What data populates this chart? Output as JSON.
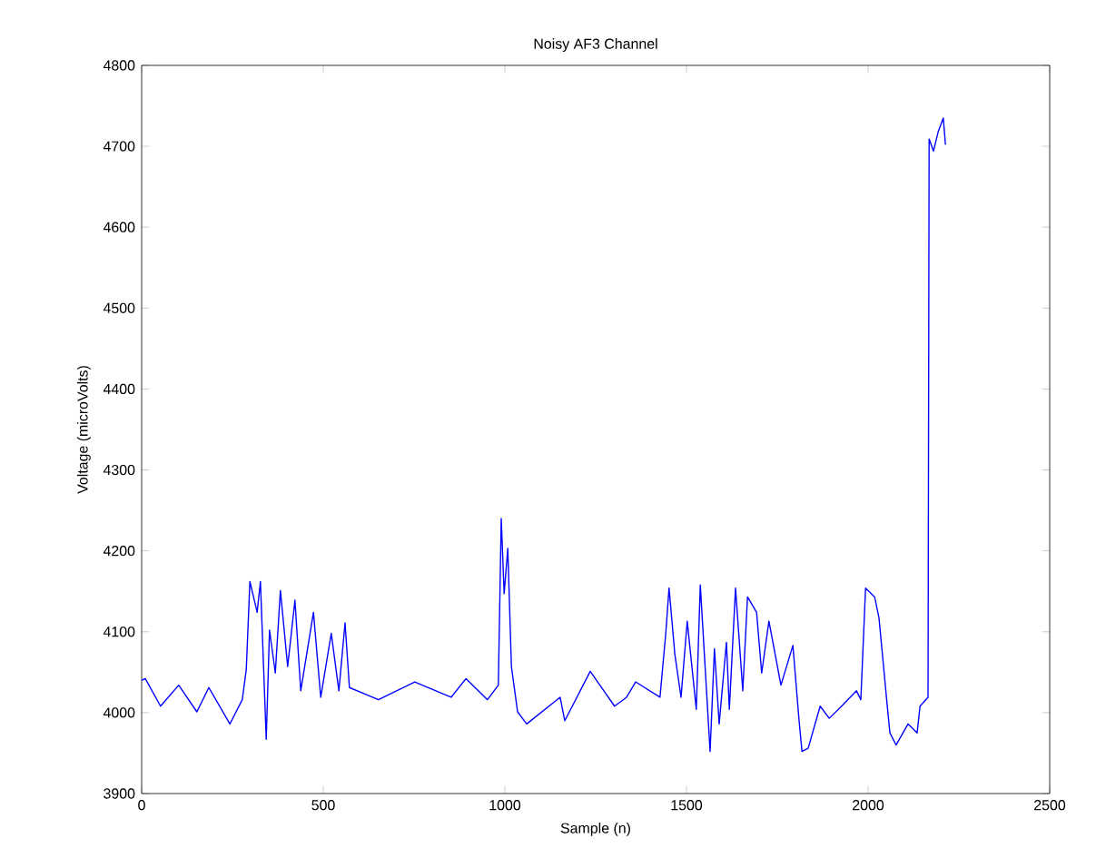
{
  "chart_data": {
    "type": "line",
    "title": "Noisy AF3 Channel",
    "xlabel": "Sample (n)",
    "ylabel": "Voltage (microVolts)",
    "xlim": [
      0,
      2500
    ],
    "ylim": [
      3900,
      4800
    ],
    "xticks": [
      0,
      500,
      1000,
      1500,
      2000,
      2500
    ],
    "yticks": [
      3900,
      4000,
      4100,
      4200,
      4300,
      4400,
      4500,
      4600,
      4700,
      4800
    ],
    "series": [
      {
        "color": "#0000ff",
        "x": [
          0,
          10,
          52,
          102,
          152,
          185,
          243,
          277,
          288,
          298,
          318,
          327,
          343,
          352,
          368,
          382,
          402,
          422,
          438,
          473,
          493,
          522,
          543,
          560,
          572,
          652,
          752,
          852,
          893,
          952,
          982,
          990,
          998,
          1008,
          1018,
          1035,
          1060,
          1152,
          1165,
          1235,
          1302,
          1335,
          1360,
          1427,
          1443,
          1452,
          1468,
          1485,
          1502,
          1527,
          1538,
          1565,
          1577,
          1590,
          1610,
          1618,
          1635,
          1655,
          1668,
          1693,
          1707,
          1727,
          1760,
          1793,
          1810,
          1818,
          1835,
          1868,
          1893,
          1927,
          1968,
          1980,
          1993,
          2018,
          2030,
          2052,
          2060,
          2077,
          2110,
          2135,
          2143,
          2165,
          2168,
          2180,
          2193,
          2207,
          2213
        ],
        "values": [
          4040,
          4042,
          4008,
          4034,
          4001,
          4031,
          3986,
          4016,
          4053,
          4162,
          4124,
          4162,
          3967,
          4102,
          4049,
          4151,
          4057,
          4139,
          4027,
          4124,
          4019,
          4098,
          4027,
          4111,
          4031,
          4016,
          4038,
          4019,
          4042,
          4016,
          4034,
          4240,
          4147,
          4203,
          4057,
          4001,
          3986,
          4019,
          3990,
          4051,
          4008,
          4019,
          4038,
          4019,
          4098,
          4154,
          4072,
          4019,
          4113,
          4004,
          4158,
          3952,
          4079,
          3986,
          4087,
          4004,
          4154,
          4027,
          4143,
          4124,
          4049,
          4113,
          4034,
          4083,
          3990,
          3952,
          3956,
          4008,
          3993,
          4008,
          4027,
          4016,
          4154,
          4143,
          4117,
          4012,
          3975,
          3960,
          3986,
          3975,
          4008,
          4019,
          4709,
          4694,
          4718,
          4735,
          4702
        ]
      }
    ]
  }
}
